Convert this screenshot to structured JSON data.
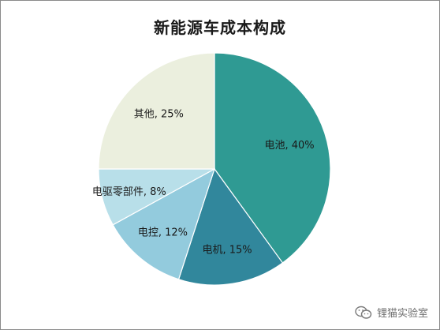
{
  "chart_data": {
    "type": "pie",
    "title": "新能源车成本构成",
    "slices": [
      {
        "label": "电池, 40%",
        "name": "电池",
        "value": 40,
        "color": "#2f9a93"
      },
      {
        "label": "电机, 15%",
        "name": "电机",
        "value": 15,
        "color": "#31879c"
      },
      {
        "label": "电控, 12%",
        "name": "电控",
        "value": 12,
        "color": "#93cbdd"
      },
      {
        "label": "电驱零部件, 8%",
        "name": "电驱零部件",
        "value": 8,
        "color": "#b8dfe9"
      },
      {
        "label": "其他, 25%",
        "name": "其他",
        "value": 25,
        "color": "#ebefde"
      }
    ],
    "start_angle_deg": 0,
    "direction": "clockwise"
  },
  "watermark": {
    "icon": "wechat-icon",
    "text": "锂猫实验室"
  }
}
